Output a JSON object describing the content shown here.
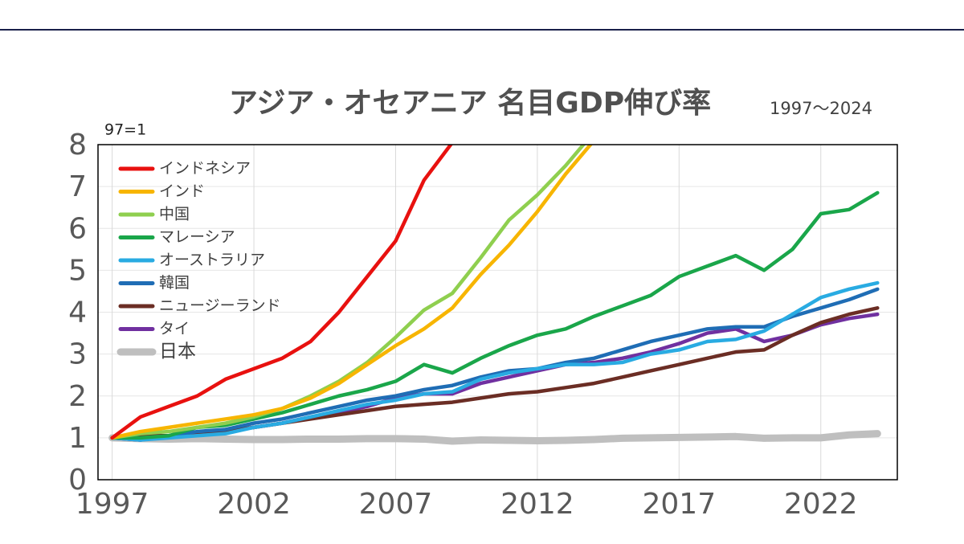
{
  "chart_data": {
    "type": "line",
    "title": "アジア・オセアニア 名目GDP伸び率",
    "subtitle": "1997～2024",
    "y_label": "97=1",
    "x": [
      1997,
      1998,
      1999,
      2000,
      2001,
      2002,
      2003,
      2004,
      2005,
      2006,
      2007,
      2008,
      2009,
      2010,
      2011,
      2012,
      2013,
      2014,
      2015,
      2016,
      2017,
      2018,
      2019,
      2020,
      2021,
      2022,
      2023,
      2024
    ],
    "xlim": [
      1996.5,
      2024.7
    ],
    "xticks": [
      1997,
      2002,
      2007,
      2012,
      2017,
      2022
    ],
    "ylim": [
      0,
      8
    ],
    "yticks": [
      0,
      1,
      2,
      3,
      4,
      5,
      6,
      7,
      8
    ],
    "grid": true,
    "legend": "upper left",
    "series": [
      {
        "name": "インドネシア",
        "color": "#e8110f",
        "values": [
          1,
          1.5,
          1.75,
          2.0,
          2.4,
          2.65,
          2.9,
          3.3,
          4.0,
          4.85,
          5.7,
          7.15,
          8.05,
          null,
          null,
          null,
          null,
          null,
          null,
          null,
          null,
          null,
          null,
          null,
          null,
          null,
          null,
          null
        ]
      },
      {
        "name": "インド",
        "color": "#f7b500",
        "values": [
          1,
          1.15,
          1.25,
          1.35,
          1.45,
          1.55,
          1.7,
          1.95,
          2.3,
          2.75,
          3.2,
          3.6,
          4.1,
          4.9,
          5.6,
          6.4,
          7.3,
          8.1,
          null,
          null,
          null,
          null,
          null,
          null,
          null,
          null,
          null,
          null
        ]
      },
      {
        "name": "中国",
        "color": "#8fcf4f",
        "values": [
          1,
          1.1,
          1.15,
          1.25,
          1.35,
          1.5,
          1.7,
          2.0,
          2.35,
          2.8,
          3.4,
          4.05,
          4.45,
          5.3,
          6.2,
          6.8,
          7.5,
          8.3,
          null,
          null,
          null,
          null,
          null,
          null,
          null,
          null,
          null,
          null
        ]
      },
      {
        "name": "マレーシア",
        "color": "#1aa64a",
        "values": [
          1,
          1.0,
          1.05,
          1.25,
          1.3,
          1.45,
          1.6,
          1.8,
          2.0,
          2.15,
          2.35,
          2.75,
          2.55,
          2.9,
          3.2,
          3.45,
          3.6,
          3.9,
          4.15,
          4.4,
          4.85,
          5.1,
          5.35,
          5.0,
          5.5,
          6.35,
          6.45,
          6.85
        ]
      },
      {
        "name": "オーストラリア",
        "color": "#29abe2",
        "values": [
          1,
          0.95,
          1.0,
          1.05,
          1.1,
          1.25,
          1.35,
          1.5,
          1.65,
          1.8,
          1.9,
          2.05,
          2.1,
          2.4,
          2.55,
          2.65,
          2.75,
          2.75,
          2.8,
          3.0,
          3.1,
          3.3,
          3.35,
          3.55,
          3.95,
          4.35,
          4.55,
          4.7
        ]
      },
      {
        "name": "韓国",
        "color": "#1f6db5",
        "values": [
          1,
          0.95,
          1.05,
          1.15,
          1.2,
          1.35,
          1.45,
          1.6,
          1.75,
          1.9,
          2.0,
          2.15,
          2.25,
          2.45,
          2.6,
          2.65,
          2.8,
          2.9,
          3.1,
          3.3,
          3.45,
          3.6,
          3.65,
          3.65,
          3.9,
          4.1,
          4.3,
          4.55
        ]
      },
      {
        "name": "ニュージーランド",
        "color": "#6b2d24",
        "values": [
          1,
          1.05,
          1.05,
          1.1,
          1.15,
          1.25,
          1.35,
          1.45,
          1.55,
          1.65,
          1.75,
          1.8,
          1.85,
          1.95,
          2.05,
          2.1,
          2.2,
          2.3,
          2.45,
          2.6,
          2.75,
          2.9,
          3.05,
          3.1,
          3.45,
          3.75,
          3.95,
          4.1
        ]
      },
      {
        "name": "タイ",
        "color": "#7030a0",
        "values": [
          1,
          0.95,
          1.05,
          1.1,
          1.15,
          1.25,
          1.35,
          1.5,
          1.6,
          1.75,
          1.95,
          2.05,
          2.05,
          2.3,
          2.45,
          2.6,
          2.75,
          2.8,
          2.9,
          3.05,
          3.25,
          3.5,
          3.6,
          3.3,
          3.45,
          3.7,
          3.85,
          3.95
        ]
      },
      {
        "name": "日本",
        "color": "#bfbfbf",
        "values": [
          1,
          0.98,
          0.97,
          0.98,
          0.97,
          0.96,
          0.96,
          0.97,
          0.97,
          0.98,
          0.98,
          0.97,
          0.92,
          0.95,
          0.94,
          0.93,
          0.94,
          0.96,
          0.99,
          1.0,
          1.01,
          1.02,
          1.03,
          0.99,
          1.0,
          1.0,
          1.07,
          1.1
        ]
      }
    ]
  }
}
